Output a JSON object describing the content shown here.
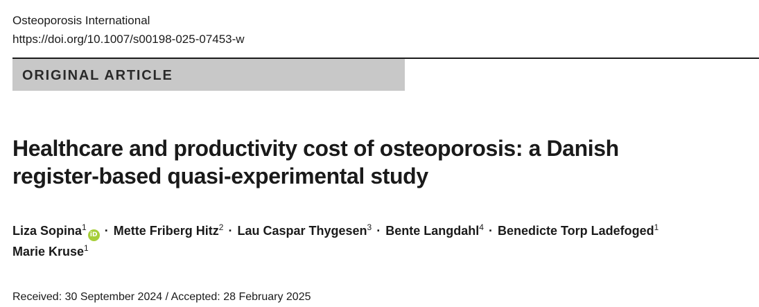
{
  "header": {
    "journal": "Osteoporosis International",
    "doi": "https://doi.org/10.1007/s00198-025-07453-w"
  },
  "article_type": "ORIGINAL ARTICLE",
  "title": {
    "line1": "Healthcare and productivity cost of osteoporosis: a Danish",
    "line2": "register-based quasi-experimental study"
  },
  "authors": [
    {
      "name": "Liza Sopina",
      "affil": "1",
      "orcid_label": "iD"
    },
    {
      "name": "Mette Friberg Hitz",
      "affil": "2"
    },
    {
      "name": "Lau Caspar Thygesen",
      "affil": "3"
    },
    {
      "name": "Bente Langdahl",
      "affil": "4"
    },
    {
      "name": "Benedicte Torp Ladefoged",
      "affil": "1"
    },
    {
      "name": "Marie Kruse",
      "affil": "1"
    }
  ],
  "separator": "·",
  "dates": "Received: 30 September 2024 / Accepted: 28 February 2025",
  "colors": {
    "banner_bg": "#c8c8c8",
    "orcid_green": "#a6ce39",
    "text": "#1a1a1a"
  }
}
